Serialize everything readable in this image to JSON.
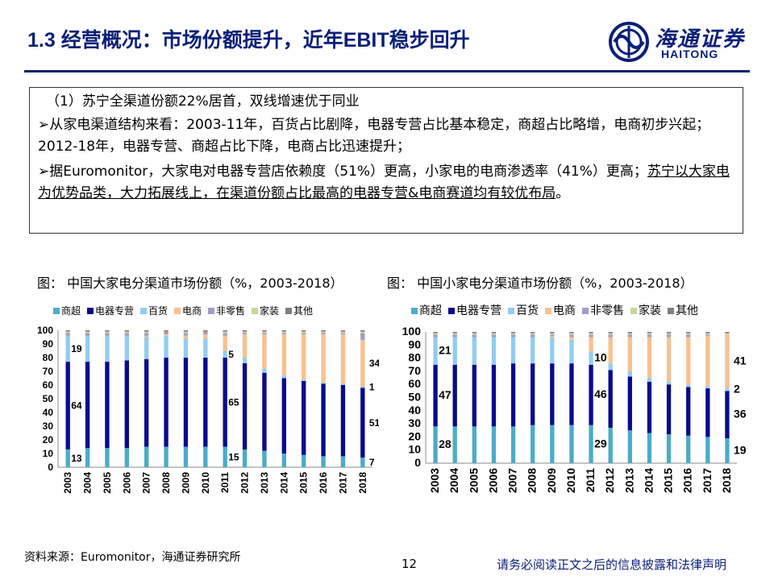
{
  "header": {
    "title": "1.3 经营概况：市场份额提升，近年EBIT稳步回升",
    "logo_cn": "海通证券",
    "logo_en": "HAITONG"
  },
  "box": {
    "heading": "（1）苏宁全渠道份额22%居首，双线增速优于同业",
    "para1": "➢从家电渠道结构来看：2003-11年，百货占比剧降，电器专营占比基本稳定，商超占比略增，电商初步兴起；2012-18年，电器专营、商超占比下降，电商占比迅速提升；",
    "para2a": "➢据Euromonitor，大家电对电器专营店依赖度（51%）更高，小家电的电商渗透率（41%）更高；",
    "para2b": "苏宁以大家电为优势品类，大力拓展线上，在渠道份额占比最高的电器专营&电商赛道均有较优布局",
    "para2c": "。"
  },
  "captions": {
    "left": "图： 中国大家电分渠道市场份额（%，2003-2018）",
    "right": "图： 中国小家电分渠道市场份额（%，2003-2018）"
  },
  "footer": {
    "source": "资料来源：Euromonitor，海通证券研究所",
    "page": "12",
    "disclaimer": "请务必阅读正文之后的信息披露和法律声明"
  },
  "legend_colors": {
    "商超": "#4bacc6",
    "电器专营": "#0a0a8c",
    "百货": "#92cdf0",
    "电商": "#f9c090",
    "非零售": "#a09ec8",
    "家装": "#c4d79b",
    "其他": "#7f7f7f"
  },
  "chart_data": [
    {
      "type": "bar",
      "stacked": true,
      "title": "中国大家电分渠道市场份额（%，2003-2018）",
      "categories": [
        "2003",
        "2004",
        "2005",
        "2006",
        "2007",
        "2008",
        "2009",
        "2010",
        "2011",
        "2012",
        "2013",
        "2014",
        "2015",
        "2016",
        "2017",
        "2018"
      ],
      "ylim": [
        0,
        100
      ],
      "yticks": [
        0,
        10,
        20,
        30,
        40,
        50,
        60,
        70,
        80,
        90,
        100
      ],
      "legend_position": "top",
      "series": [
        {
          "name": "商超",
          "values": [
            13,
            14,
            14,
            14,
            15,
            15,
            15,
            15,
            15,
            13,
            12,
            10,
            9,
            8,
            8,
            7
          ]
        },
        {
          "name": "电器专营",
          "values": [
            64,
            63,
            63,
            64,
            64,
            65,
            65,
            65,
            65,
            63,
            57,
            55,
            54,
            53,
            52,
            51
          ]
        },
        {
          "name": "百货",
          "values": [
            19,
            19,
            19,
            18,
            16,
            16,
            14,
            14,
            5,
            4,
            3,
            2,
            1,
            1,
            1,
            1
          ]
        },
        {
          "name": "电商",
          "values": [
            0,
            0,
            0,
            0,
            1,
            1,
            2,
            3,
            11,
            17,
            25,
            30,
            33,
            35,
            36,
            34
          ]
        },
        {
          "name": "非零售",
          "values": [
            2,
            2,
            2,
            2,
            2,
            2,
            2,
            2,
            2,
            1,
            1,
            1,
            1,
            1,
            1,
            5
          ]
        },
        {
          "name": "家装",
          "values": [
            1,
            1,
            1,
            1,
            1,
            0,
            1,
            0,
            1,
            1,
            1,
            1,
            1,
            1,
            1,
            1
          ]
        },
        {
          "name": "其他",
          "values": [
            1,
            1,
            1,
            1,
            1,
            1,
            1,
            1,
            1,
            1,
            1,
            1,
            1,
            1,
            1,
            1
          ]
        }
      ],
      "data_labels": [
        {
          "category": "2003",
          "series": "商超",
          "text": "13"
        },
        {
          "category": "2003",
          "series": "电器专营",
          "text": "64"
        },
        {
          "category": "2003",
          "series": "百货",
          "text": "19"
        },
        {
          "category": "2011",
          "series": "商超",
          "text": "15"
        },
        {
          "category": "2011",
          "series": "电器专营",
          "text": "65"
        },
        {
          "category": "2011",
          "series": "百货",
          "text": "5"
        },
        {
          "category": "2018",
          "series": "商超",
          "text": "7"
        },
        {
          "category": "2018",
          "series": "电器专营",
          "text": "51"
        },
        {
          "category": "2018",
          "series": "百货",
          "text": "1"
        },
        {
          "category": "2018",
          "series": "电商",
          "text": "34"
        }
      ]
    },
    {
      "type": "bar",
      "stacked": true,
      "title": "中国小家电分渠道市场份额（%，2003-2018）",
      "categories": [
        "2003",
        "2004",
        "2005",
        "2006",
        "2007",
        "2008",
        "2009",
        "2010",
        "2011",
        "2012",
        "2013",
        "2014",
        "2015",
        "2016",
        "2017",
        "2018"
      ],
      "ylim": [
        0,
        100
      ],
      "yticks": [
        0,
        10,
        20,
        30,
        40,
        50,
        60,
        70,
        80,
        90,
        100
      ],
      "legend_position": "top",
      "series": [
        {
          "name": "商超",
          "values": [
            28,
            28,
            28,
            28,
            28,
            29,
            29,
            29,
            29,
            27,
            25,
            23,
            22,
            21,
            20,
            19
          ]
        },
        {
          "name": "电器专营",
          "values": [
            47,
            47,
            47,
            47,
            48,
            47,
            47,
            47,
            46,
            44,
            41,
            39,
            38,
            37,
            37,
            36
          ]
        },
        {
          "name": "百货",
          "values": [
            21,
            21,
            21,
            21,
            20,
            20,
            20,
            18,
            10,
            5,
            4,
            3,
            2,
            2,
            2,
            2
          ]
        },
        {
          "name": "电商",
          "values": [
            0,
            0,
            0,
            0,
            0,
            0,
            1,
            2,
            11,
            20,
            26,
            31,
            34,
            36,
            38,
            41
          ]
        },
        {
          "name": "非零售",
          "values": [
            2,
            2,
            2,
            2,
            2,
            2,
            1,
            2,
            2,
            2,
            2,
            2,
            2,
            2,
            1,
            0
          ]
        },
        {
          "name": "家装",
          "values": [
            1,
            1,
            1,
            1,
            1,
            1,
            1,
            1,
            1,
            1,
            1,
            1,
            1,
            1,
            1,
            1
          ]
        },
        {
          "name": "其他",
          "values": [
            1,
            1,
            1,
            1,
            1,
            1,
            1,
            1,
            1,
            1,
            1,
            1,
            1,
            1,
            1,
            1
          ]
        }
      ],
      "data_labels": [
        {
          "category": "2003",
          "series": "商超",
          "text": "28"
        },
        {
          "category": "2003",
          "series": "电器专营",
          "text": "47"
        },
        {
          "category": "2003",
          "series": "百货",
          "text": "21"
        },
        {
          "category": "2011",
          "series": "商超",
          "text": "29"
        },
        {
          "category": "2011",
          "series": "电器专营",
          "text": "46"
        },
        {
          "category": "2011",
          "series": "百货",
          "text": "10"
        },
        {
          "category": "2018",
          "series": "商超",
          "text": "19"
        },
        {
          "category": "2018",
          "series": "电器专营",
          "text": "36"
        },
        {
          "category": "2018",
          "series": "百货",
          "text": "2"
        },
        {
          "category": "2018",
          "series": "电商",
          "text": "41"
        }
      ]
    }
  ]
}
